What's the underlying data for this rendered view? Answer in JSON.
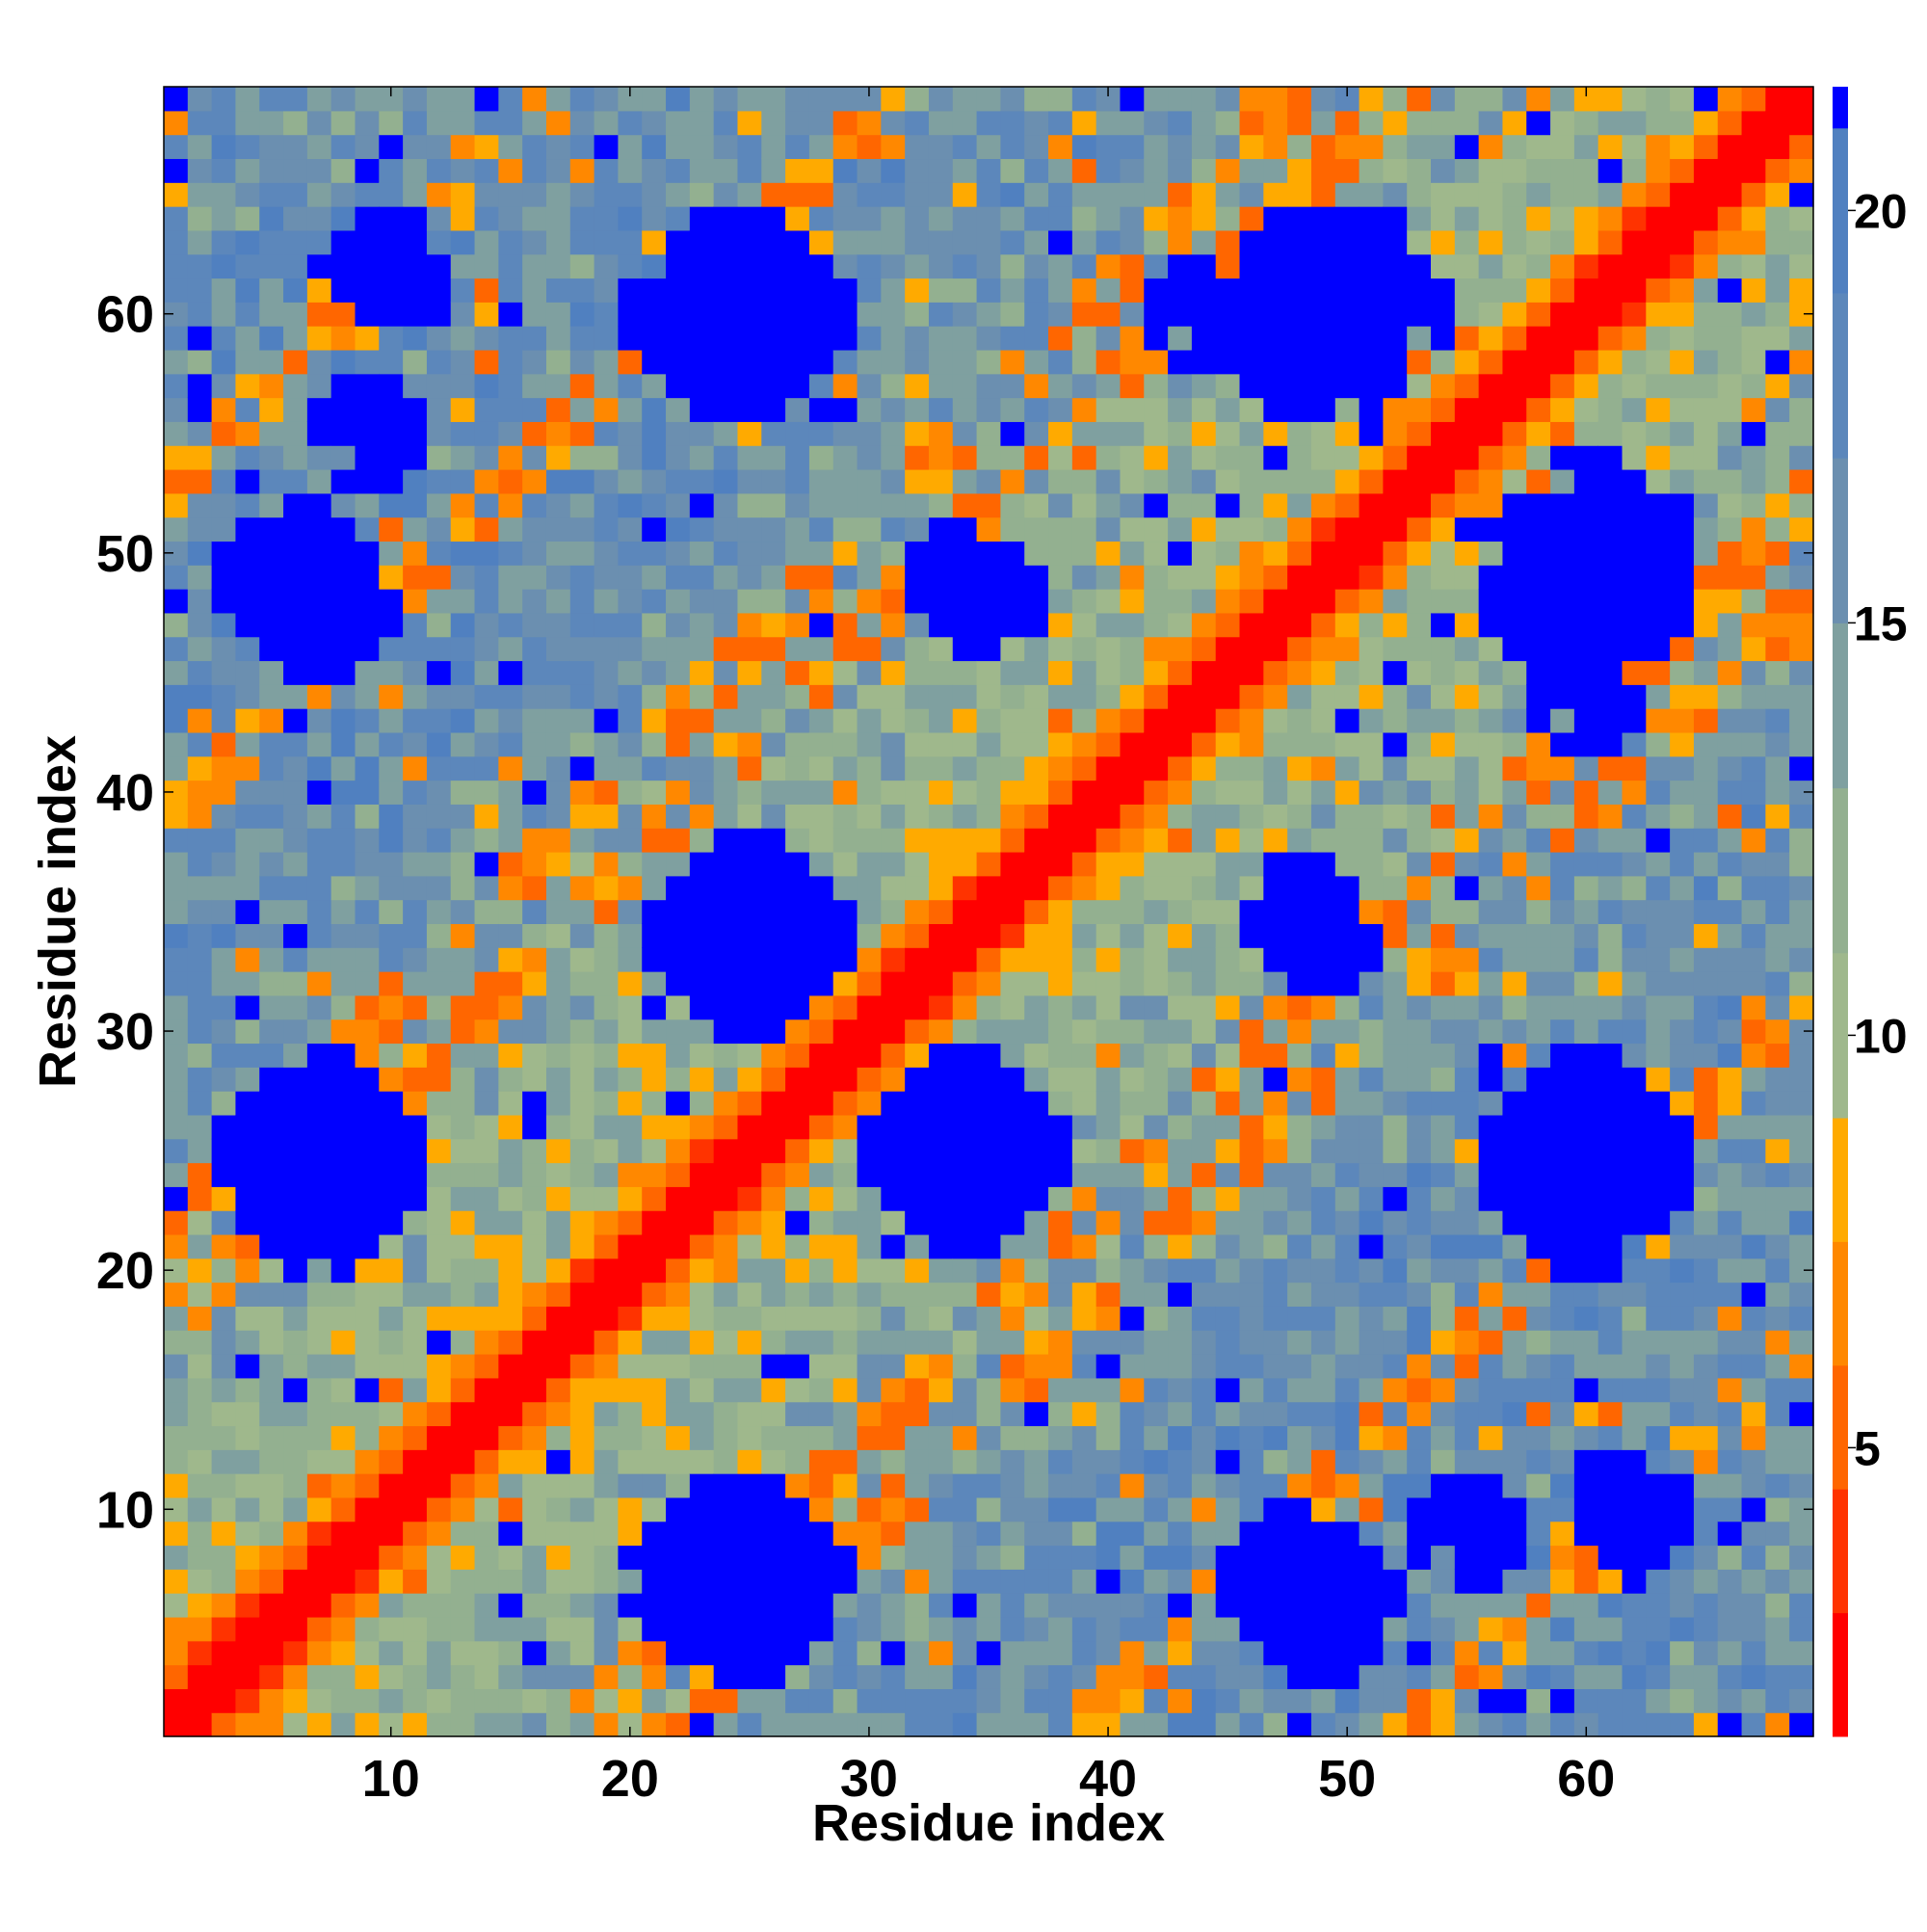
{
  "chart_data": {
    "type": "heatmap",
    "title": "",
    "xlabel": "Residue index",
    "ylabel": "Residue index",
    "n_residues": 69,
    "xlim": [
      1,
      69
    ],
    "ylim": [
      1,
      69
    ],
    "x_ticks": [
      10,
      20,
      30,
      40,
      50,
      60
    ],
    "y_ticks": [
      10,
      20,
      30,
      40,
      50,
      60
    ],
    "colorbar": {
      "range": [
        1.5,
        21.5
      ],
      "ticks": [
        5,
        10,
        15,
        20
      ],
      "bands": [
        {
          "from": 1.5,
          "to": 3.0,
          "color": "#ff0000"
        },
        {
          "from": 3.0,
          "to": 4.5,
          "color": "#ff3300"
        },
        {
          "from": 4.5,
          "to": 6.0,
          "color": "#ff6600"
        },
        {
          "from": 6.0,
          "to": 7.5,
          "color": "#ff8800"
        },
        {
          "from": 7.5,
          "to": 9.0,
          "color": "#ffaa00"
        },
        {
          "from": 9.0,
          "to": 11.0,
          "color": "#9fb88c"
        },
        {
          "from": 11.0,
          "to": 13.0,
          "color": "#93b090"
        },
        {
          "from": 13.0,
          "to": 15.0,
          "color": "#7fa0a0"
        },
        {
          "from": 15.0,
          "to": 17.0,
          "color": "#6b8fb0"
        },
        {
          "from": 17.0,
          "to": 19.0,
          "color": "#5c87bb"
        },
        {
          "from": 19.0,
          "to": 21.0,
          "color": "#5080c0"
        },
        {
          "from": 21.0,
          "to": 21.5,
          "color": "#0000ff"
        }
      ]
    },
    "hotspot_offsets": [
      17,
      21,
      38,
      52
    ],
    "blue_blocks": [
      [
        24,
        7,
        4
      ],
      [
        24,
        34,
        3
      ],
      [
        24,
        60,
        4
      ],
      [
        34,
        25,
        4
      ],
      [
        34,
        49,
        2
      ],
      [
        48,
        7,
        3
      ],
      [
        48,
        35,
        2
      ],
      [
        48,
        60,
        4
      ],
      [
        60,
        25,
        4
      ],
      [
        60,
        50,
        4
      ],
      [
        7,
        25,
        4
      ],
      [
        6,
        49,
        3
      ],
      [
        55,
        9,
        2
      ],
      [
        62,
        10,
        2
      ],
      [
        44,
        60,
        2
      ]
    ]
  }
}
